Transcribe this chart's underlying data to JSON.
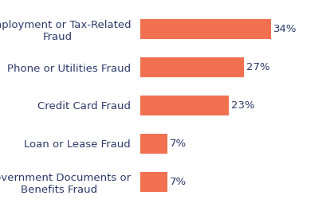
{
  "categories": [
    "Government Documents or\nBenefits Fraud",
    "Loan or Lease Fraud",
    "Credit Card Fraud",
    "Phone or Utilities Fraud",
    "Employment or Tax-Related\nFraud"
  ],
  "values": [
    7,
    7,
    23,
    27,
    34
  ],
  "bar_color": "#F07050",
  "label_color": "#2d3a6b",
  "value_color": "#2d3a6b",
  "background_color": "#ffffff",
  "xlim": [
    0,
    40
  ],
  "bar_height": 0.52,
  "label_fontsize": 9.5,
  "value_fontsize": 9.5,
  "figsize": [
    4.19,
    2.65
  ],
  "dpi": 100
}
